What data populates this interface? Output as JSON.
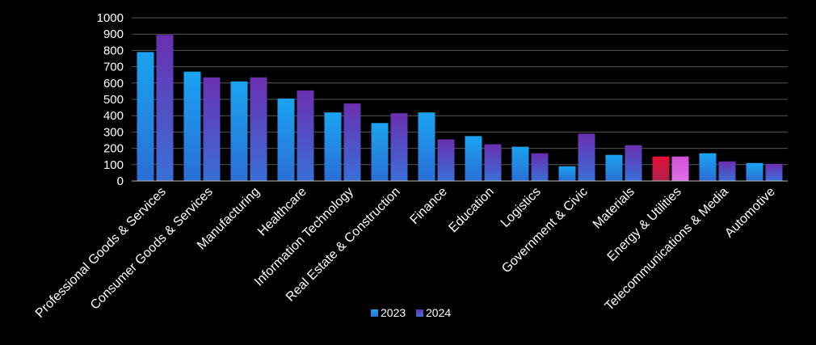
{
  "chart_data": {
    "type": "bar",
    "categories": [
      "Professional Goods & Services",
      "Consumer Goods & Services",
      "Manufacturing",
      "Healthcare",
      "Information Technology",
      "Real Estate & Construction",
      "Finance",
      "Education",
      "Logistics",
      "Government & Civic",
      "Materials",
      "Energy & Utilities",
      "Telecommunications & Media",
      "Automotive"
    ],
    "series": [
      {
        "name": "2023",
        "values": [
          790,
          670,
          610,
          505,
          420,
          355,
          420,
          275,
          210,
          90,
          160,
          150,
          170,
          110
        ]
      },
      {
        "name": "2024",
        "values": [
          895,
          635,
          635,
          555,
          475,
          415,
          255,
          225,
          170,
          290,
          220,
          150,
          120,
          105
        ]
      }
    ],
    "yticks": [
      0,
      100,
      200,
      300,
      400,
      500,
      600,
      700,
      800,
      900,
      1000
    ],
    "ylim": [
      0,
      1000
    ],
    "grid": true,
    "legend": "bottom-center",
    "highlight_category": "Energy & Utilities",
    "colors": {
      "series_2023_top": "#1aa3f0",
      "series_2023_bottom": "#2a6fd6",
      "series_2024_top": "#6a2fb0",
      "series_2024_bottom": "#3a6fd8",
      "highlight_2023_top": "#e0103a",
      "highlight_2023_bottom": "#b0204a",
      "highlight_2024_top": "#d050d8",
      "highlight_2024_bottom": "#e070e8",
      "grid": "#555555",
      "axis": "#bbbbbb",
      "background": "#000000"
    }
  }
}
